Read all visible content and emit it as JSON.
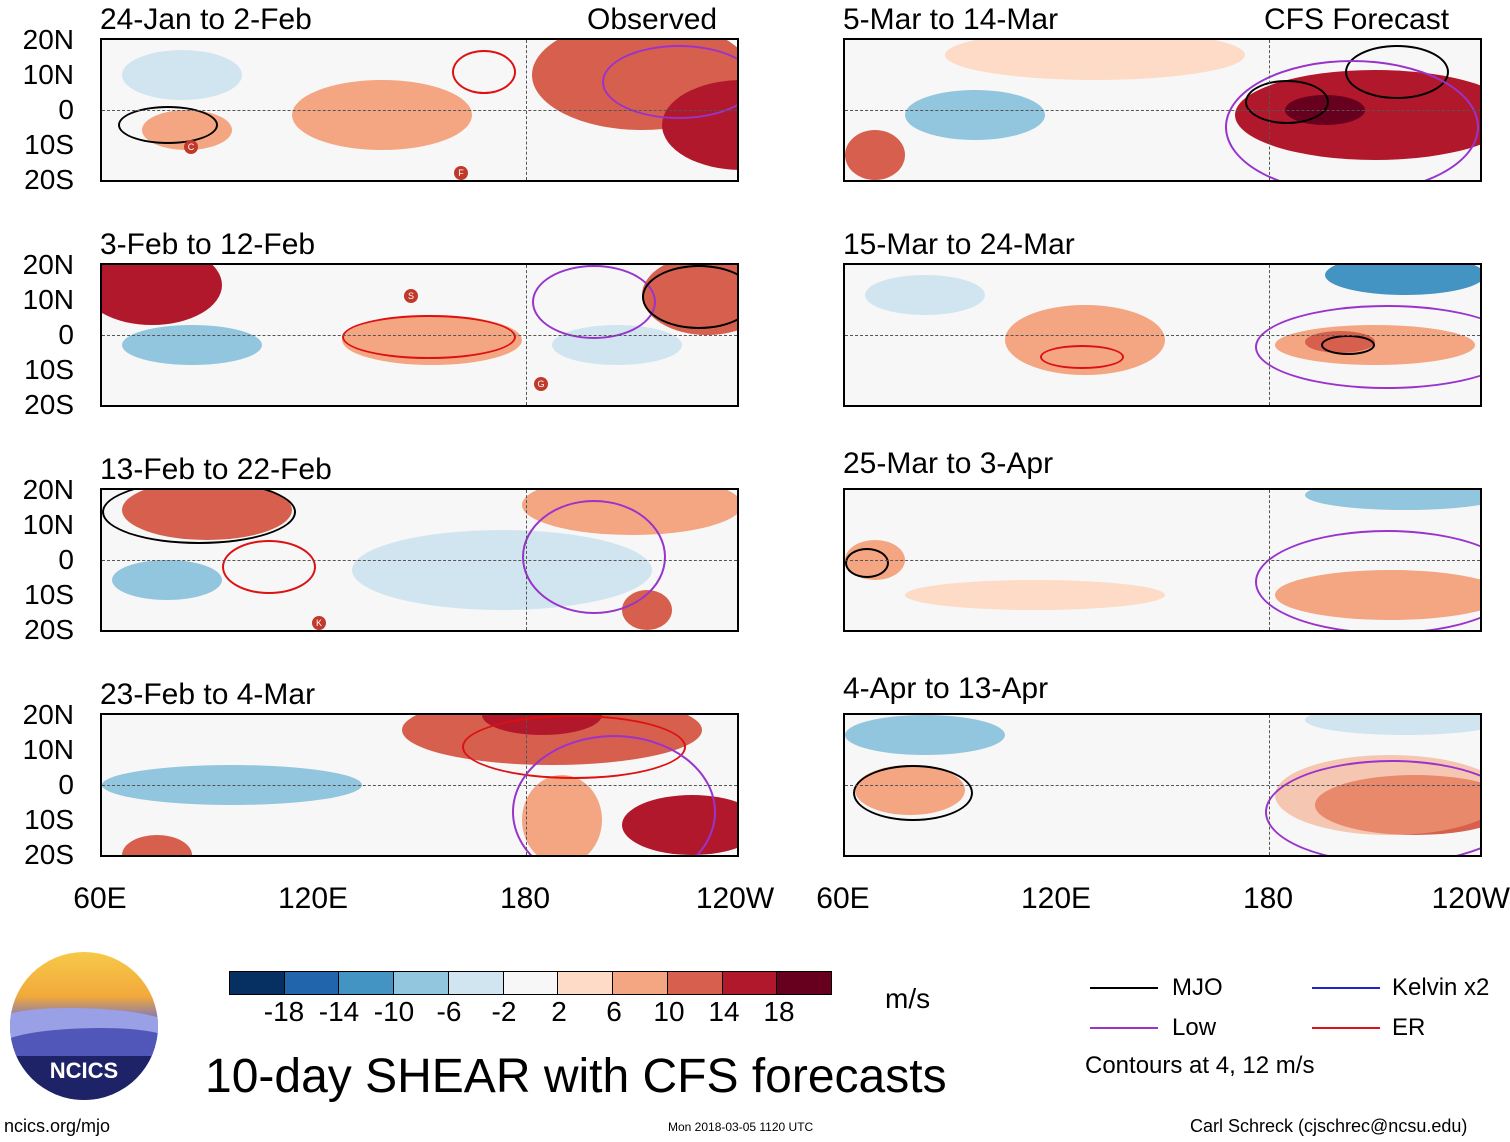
{
  "header": {
    "observed_label": "Observed",
    "forecast_label": "CFS Forecast"
  },
  "panels": {
    "obs1": {
      "date": "24-Jan to 2-Feb"
    },
    "obs2": {
      "date": "3-Feb to 12-Feb"
    },
    "obs3": {
      "date": "13-Feb to 22-Feb"
    },
    "obs4": {
      "date": "23-Feb to 4-Mar"
    },
    "fc1": {
      "date": "5-Mar to 14-Mar"
    },
    "fc2": {
      "date": "15-Mar to 24-Mar"
    },
    "fc3": {
      "date": "25-Mar to 3-Apr"
    },
    "fc4": {
      "date": "4-Apr to 13-Apr"
    }
  },
  "axes": {
    "lat_labels": [
      "20N",
      "10N",
      "0",
      "10S",
      "20S"
    ],
    "lon_labels": [
      "60E",
      "120E",
      "180",
      "120W"
    ]
  },
  "cyclones": [
    "C",
    "F",
    "S",
    "G",
    "K"
  ],
  "colorbar": {
    "ticks": [
      "-18",
      "-14",
      "-10",
      "-6",
      "-2",
      "2",
      "6",
      "10",
      "14",
      "18"
    ],
    "units": "m/s",
    "colors": [
      "#053061",
      "#2166ac",
      "#4393c3",
      "#92c5de",
      "#d1e5f0",
      "#f7f7f7",
      "#fddbc7",
      "#f4a582",
      "#d6604d",
      "#b2182b",
      "#67001f"
    ]
  },
  "legend": {
    "mjo": "MJO",
    "low": "Low",
    "kelvin": "Kelvin x2",
    "er": "ER",
    "contours_note": "Contours at 4, 12 m/s",
    "colors": {
      "mjo": "#000000",
      "low": "#9933cc",
      "kelvin": "#2222cc",
      "er": "#dd1111"
    }
  },
  "footer": {
    "title": "10-day SHEAR with CFS forecasts",
    "url": "ncics.org/mjo",
    "timestamp": "Mon 2018-03-05 1120 UTC",
    "credit": "Carl Schreck (cjschrec@ncsu.edu)",
    "logo_text": "NCICS"
  }
}
